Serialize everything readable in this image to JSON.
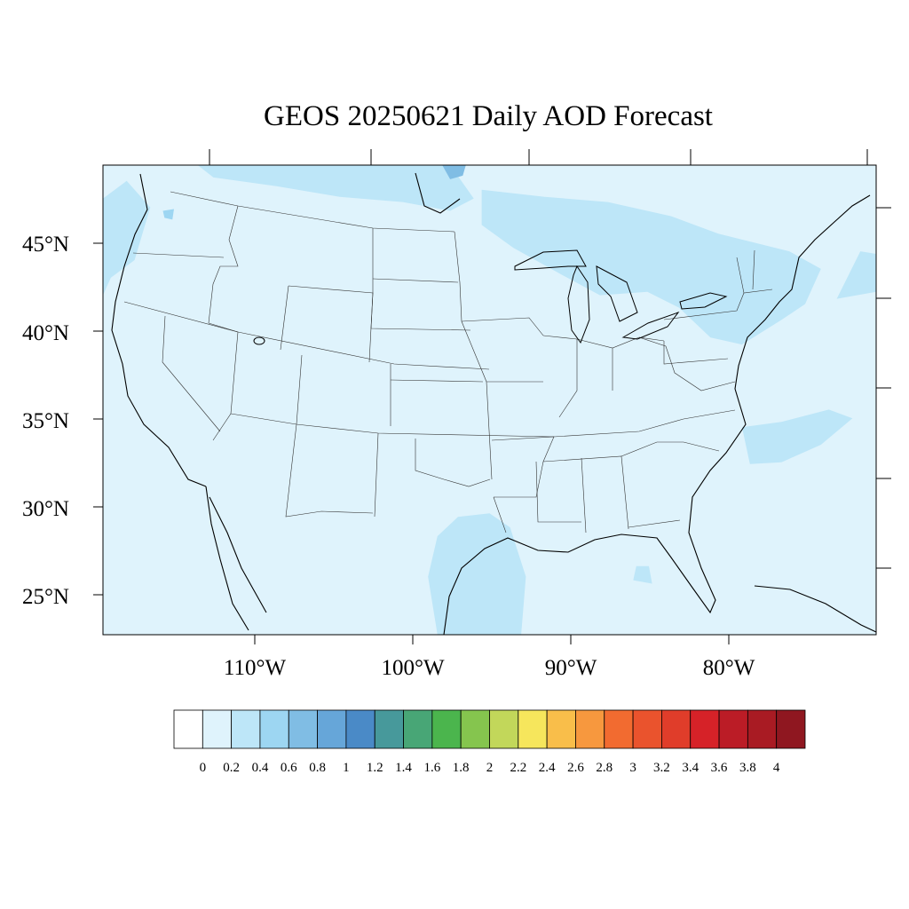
{
  "title": "GEOS 20250621 Daily AOD Forecast",
  "map": {
    "extent": {
      "lon_min": -119,
      "lon_max": -70,
      "lat_min": 22.7,
      "lat_max": 49.4
    },
    "background_color": "#dff3fc",
    "lat_ticks": [
      {
        "value": 45,
        "label": "45°N"
      },
      {
        "value": 40,
        "label": "40°N"
      },
      {
        "value": 35,
        "label": "35°N"
      },
      {
        "value": 30,
        "label": "30°N"
      },
      {
        "value": 25,
        "label": "25°N"
      }
    ],
    "lon_ticks": [
      {
        "value": -110,
        "label": "110°W"
      },
      {
        "value": -100,
        "label": "100°W"
      },
      {
        "value": -90,
        "label": "90°W"
      },
      {
        "value": -80,
        "label": "80°W"
      }
    ],
    "aod_patches": [
      {
        "name": "pacific-northwest-plume",
        "level": 0.3,
        "lonlat": [
          [
            -119,
            47.5
          ],
          [
            -117.5,
            48.5
          ],
          [
            -116,
            47
          ],
          [
            -117,
            44
          ],
          [
            -118.5,
            43
          ],
          [
            -119,
            42
          ]
        ]
      },
      {
        "name": "northern-border-plume",
        "level": 0.3,
        "lonlat": [
          [
            -113,
            49.4
          ],
          [
            -97,
            49.4
          ],
          [
            -95.5,
            47.5
          ],
          [
            -97,
            46.8
          ],
          [
            -100,
            47.3
          ],
          [
            -104,
            47.6
          ],
          [
            -108,
            48.2
          ],
          [
            -112,
            48.7
          ]
        ]
      },
      {
        "name": "manitoba-peak",
        "level": 0.7,
        "lonlat": [
          [
            -97.5,
            49.4
          ],
          [
            -96,
            49.4
          ],
          [
            -96.2,
            48.8
          ],
          [
            -97,
            48.6
          ]
        ]
      },
      {
        "name": "idaho-spot",
        "level": 0.5,
        "lonlat": [
          [
            -115.2,
            46.8
          ],
          [
            -114.5,
            46.9
          ],
          [
            -114.6,
            46.3
          ],
          [
            -115.1,
            46.4
          ]
        ]
      },
      {
        "name": "great-lakes-plume",
        "level": 0.3,
        "lonlat": [
          [
            -95,
            48
          ],
          [
            -91,
            47.6
          ],
          [
            -87,
            47.3
          ],
          [
            -83,
            46.5
          ],
          [
            -80,
            45.5
          ],
          [
            -75.5,
            44.5
          ],
          [
            -73.5,
            43.5
          ],
          [
            -74.5,
            41.5
          ],
          [
            -76,
            40.6
          ],
          [
            -78.5,
            39.2
          ],
          [
            -80.5,
            39.6
          ],
          [
            -82.5,
            41.3
          ],
          [
            -84.5,
            42.2
          ],
          [
            -87.5,
            42
          ],
          [
            -90,
            43.2
          ],
          [
            -93,
            44.7
          ],
          [
            -95,
            46
          ]
        ]
      },
      {
        "name": "new-england-coastal",
        "level": 0.3,
        "lonlat": [
          [
            -71,
            44.5
          ],
          [
            -69,
            44.2
          ],
          [
            -67,
            43
          ],
          [
            -70,
            42.2
          ],
          [
            -72.5,
            41.8
          ]
        ]
      },
      {
        "name": "carolinas-offshore",
        "level": 0.3,
        "lonlat": [
          [
            -78.5,
            34.5
          ],
          [
            -76,
            34.8
          ],
          [
            -73,
            35.5
          ],
          [
            -71.5,
            35
          ],
          [
            -73.5,
            33.5
          ],
          [
            -76,
            32.5
          ],
          [
            -78,
            32.4
          ]
        ]
      },
      {
        "name": "texas-gulf-plume",
        "level": 0.3,
        "lonlat": [
          [
            -97.8,
            22.7
          ],
          [
            -92.5,
            22.7
          ],
          [
            -92.2,
            26
          ],
          [
            -93.2,
            28.8
          ],
          [
            -94.5,
            29.6
          ],
          [
            -96.5,
            29.4
          ],
          [
            -97.8,
            28.3
          ],
          [
            -98.4,
            26
          ]
        ]
      },
      {
        "name": "florida-spot",
        "level": 0.3,
        "lonlat": [
          [
            -85.4,
            25.8
          ],
          [
            -84.2,
            25.6
          ],
          [
            -84.4,
            26.6
          ],
          [
            -85.2,
            26.6
          ]
        ]
      }
    ],
    "colorbar": {
      "colors": [
        "#ffffff",
        "#dff3fc",
        "#bde6f8",
        "#9dd6f2",
        "#80bde4",
        "#66a6d9",
        "#4a8ac7",
        "#47999b",
        "#48a676",
        "#4bb54d",
        "#85c54e",
        "#c2d75a",
        "#f6e65c",
        "#f9be4a",
        "#f7983e",
        "#f26b30",
        "#ea532d",
        "#e03d2a",
        "#d62228",
        "#bb1c26",
        "#a91b23",
        "#8f1720"
      ],
      "labels": [
        "0",
        "0.2",
        "0.4",
        "0.6",
        "0.8",
        "1",
        "1.2",
        "1.4",
        "1.6",
        "1.8",
        "2",
        "2.2",
        "2.4",
        "2.6",
        "2.8",
        "3",
        "3.2",
        "3.4",
        "3.6",
        "3.8",
        "4"
      ]
    }
  }
}
